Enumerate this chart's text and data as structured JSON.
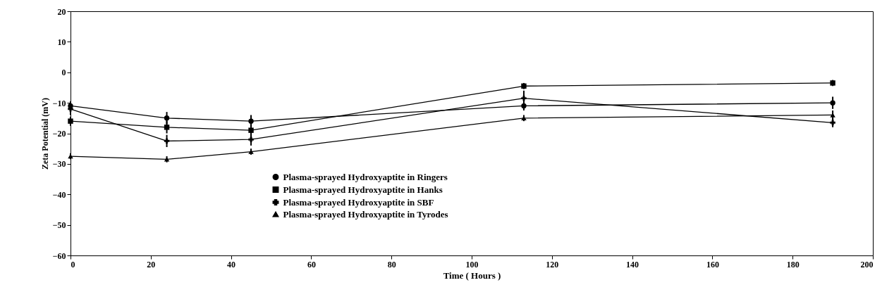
{
  "chart_data": {
    "type": "line",
    "xlabel": "Time ( Hours )",
    "ylabel": "Zeta Potential (mV)",
    "x": [
      0,
      24,
      45,
      113,
      190
    ],
    "series": [
      {
        "name": "Plasma-sprayed Hydroxyaptite in Ringers",
        "color": "#000000",
        "marker": "circle",
        "values": [
          -11,
          -15,
          -16,
          -11,
          -10
        ],
        "errors": [
          1.5,
          2,
          2,
          1.5,
          2
        ]
      },
      {
        "name": "Plasma-sprayed Hydroxyaptite  in Hanks",
        "color": "#000000",
        "marker": "square",
        "values": [
          -16,
          -18,
          -19,
          -4.5,
          -3.5
        ],
        "errors": [
          1.5,
          2,
          2,
          1,
          1
        ]
      },
      {
        "name": "Plasma-sprayed Hydroxyaptite  in SBF",
        "color": "#000000",
        "marker": "cross",
        "values": [
          -12,
          -22.5,
          -22,
          -8.5,
          -16.5
        ],
        "errors": [
          2,
          2,
          2,
          2.5,
          1.5
        ]
      },
      {
        "name": "Plasma-sprayed Hydroxyaptite in Tyrodes",
        "color": "#000000",
        "marker": "triangle",
        "values": [
          -27.5,
          -28.5,
          -26,
          -15,
          -14
        ],
        "errors": [
          1,
          1,
          1,
          1,
          1.5
        ]
      }
    ],
    "xlim": [
      0,
      200
    ],
    "xticks": [
      0,
      20,
      40,
      60,
      80,
      100,
      120,
      140,
      160,
      180,
      200
    ],
    "ylim": [
      -60,
      20
    ],
    "yticks": [
      -60,
      -50,
      -40,
      -30,
      -20,
      -10,
      0,
      10,
      20
    ],
    "grid": false,
    "legend": "bottom",
    "line_style": "solid"
  }
}
